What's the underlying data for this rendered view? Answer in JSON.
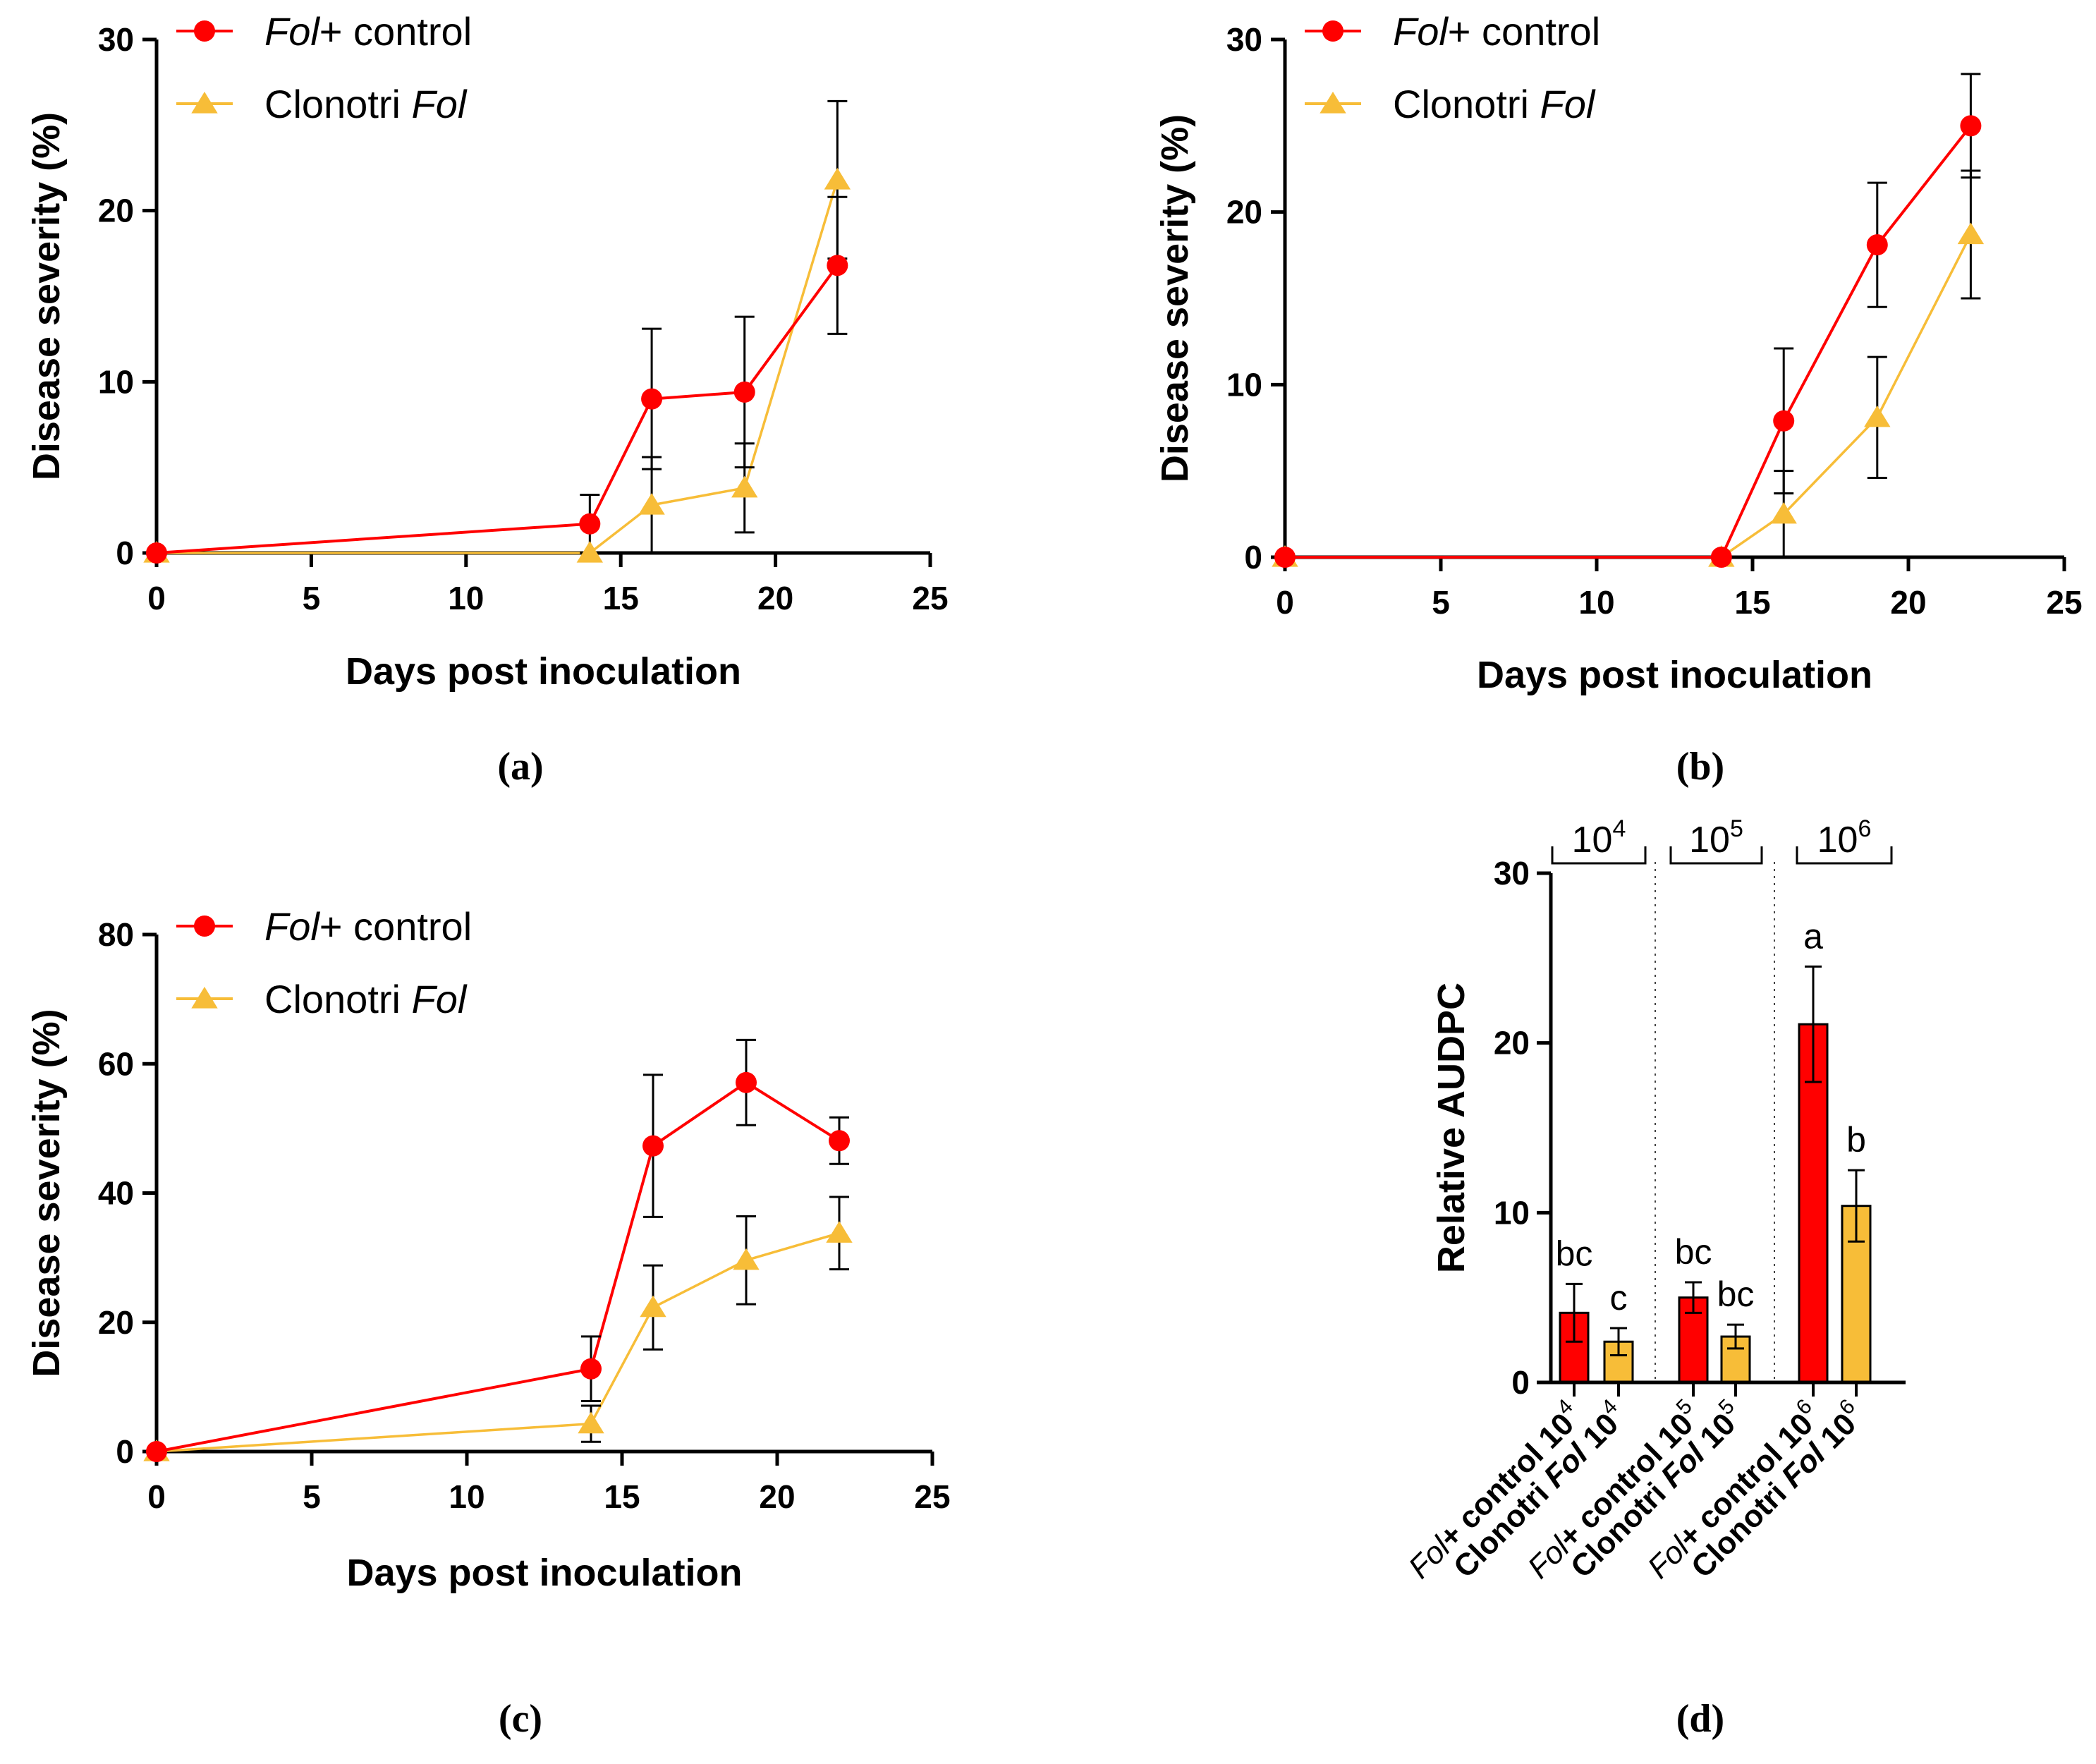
{
  "figure": {
    "panels": [
      "(a)",
      "(b)",
      "(c)",
      "(d)"
    ]
  },
  "colors": {
    "control": "#ff0000",
    "clonotri": "#f7bd38",
    "axis": "#000000"
  },
  "chart_data": [
    {
      "id": "a",
      "panel_label": "(a)",
      "type": "line",
      "xlabel": "Days post inoculation",
      "ylabel": "Disease severity (%)",
      "xlim": [
        0,
        25
      ],
      "ylim": [
        0,
        30
      ],
      "xticks": [
        0,
        5,
        10,
        15,
        20,
        25
      ],
      "yticks": [
        0,
        10,
        20,
        30
      ],
      "legend": [
        {
          "italic": "Fol",
          "rest": "+ control",
          "marker": "circle",
          "italic_first": true
        },
        {
          "italic": "Fol",
          "rest": "Clonotri ",
          "marker": "triangle",
          "italic_first": false
        }
      ],
      "series": [
        {
          "name": "Fol+ control",
          "marker": "circle",
          "color": "#ff0000",
          "x": [
            0,
            14,
            16,
            19,
            22
          ],
          "y": [
            0,
            1.7,
            9.0,
            9.4,
            16.8
          ],
          "err": [
            0,
            1.7,
            4.1,
            4.4,
            4.0
          ]
        },
        {
          "name": "Clonotri Fol",
          "marker": "triangle",
          "color": "#f7bd38",
          "x": [
            0,
            14,
            16,
            19,
            22
          ],
          "y": [
            0,
            0,
            2.8,
            3.8,
            21.8
          ],
          "err": [
            0,
            0,
            2.8,
            2.6,
            4.6
          ]
        }
      ]
    },
    {
      "id": "b",
      "panel_label": "(b)",
      "type": "line",
      "xlabel": "Days post inoculation",
      "ylabel": "Disease severity (%)",
      "xlim": [
        0,
        25
      ],
      "ylim": [
        0,
        30
      ],
      "xticks": [
        0,
        5,
        10,
        15,
        20,
        25
      ],
      "yticks": [
        0,
        10,
        20,
        30
      ],
      "legend": [
        {
          "italic": "Fol",
          "rest": "+ control",
          "marker": "circle",
          "italic_first": true
        },
        {
          "italic": "Fol",
          "rest": "Clonotri ",
          "marker": "triangle",
          "italic_first": false
        }
      ],
      "series": [
        {
          "name": "Fol+ control",
          "marker": "circle",
          "color": "#ff0000",
          "x": [
            0,
            14,
            16,
            19,
            22
          ],
          "y": [
            0,
            0,
            7.9,
            18.1,
            25.0
          ],
          "err": [
            0,
            0,
            4.2,
            3.6,
            3.0
          ]
        },
        {
          "name": "Clonotri Fol",
          "marker": "triangle",
          "color": "#f7bd38",
          "x": [
            0,
            14,
            16,
            19,
            22
          ],
          "y": [
            0,
            0,
            2.5,
            8.1,
            18.7
          ],
          "err": [
            0,
            0,
            2.5,
            3.5,
            3.7
          ]
        }
      ]
    },
    {
      "id": "c",
      "panel_label": "(c)",
      "type": "line",
      "xlabel": "Days post inoculation",
      "ylabel": "Disease severity (%)",
      "xlim": [
        0,
        25
      ],
      "ylim": [
        0,
        80
      ],
      "xticks": [
        0,
        5,
        10,
        15,
        20,
        25
      ],
      "yticks": [
        0,
        20,
        40,
        60,
        80
      ],
      "legend": [
        {
          "italic": "Fol",
          "rest": "+ control",
          "marker": "circle",
          "italic_first": true
        },
        {
          "italic": "Fol",
          "rest": "Clonotri ",
          "marker": "triangle",
          "italic_first": false
        }
      ],
      "series": [
        {
          "name": "Fol+ control",
          "marker": "circle",
          "color": "#ff0000",
          "x": [
            0,
            14,
            16,
            19,
            22
          ],
          "y": [
            0,
            12.8,
            47.3,
            57.1,
            48.1
          ],
          "err": [
            0,
            5.0,
            11.0,
            6.6,
            3.6
          ]
        },
        {
          "name": "Clonotri Fol",
          "marker": "triangle",
          "color": "#f7bd38",
          "x": [
            0,
            14,
            16,
            19,
            22
          ],
          "y": [
            0,
            4.3,
            22.3,
            29.6,
            33.8
          ],
          "err": [
            0,
            2.8,
            6.5,
            6.8,
            5.6
          ]
        }
      ]
    },
    {
      "id": "d",
      "panel_label": "(d)",
      "type": "bar",
      "ylabel": "Relative AUDPC",
      "ylim": [
        0,
        30
      ],
      "yticks": [
        0,
        10,
        20,
        30
      ],
      "groups": [
        {
          "base": "10",
          "exp": "4"
        },
        {
          "base": "10",
          "exp": "5"
        },
        {
          "base": "10",
          "exp": "6"
        }
      ],
      "categories": [
        {
          "kind": "control",
          "pre": "Fol",
          "mid": "+ control ",
          "base": "10",
          "exp": "4"
        },
        {
          "kind": "clonotri",
          "pre": "Clonotri ",
          "mid": "Fol",
          "base": " 10",
          "exp": "4"
        },
        {
          "kind": "control",
          "pre": "Fol",
          "mid": "+ control ",
          "base": "10",
          "exp": "5"
        },
        {
          "kind": "clonotri",
          "pre": "Clonotri ",
          "mid": "Fol",
          "base": " 10",
          "exp": "5"
        },
        {
          "kind": "control",
          "pre": "Fol",
          "mid": "+ control ",
          "base": "10",
          "exp": "6"
        },
        {
          "kind": "clonotri",
          "pre": "Clonotri ",
          "mid": "Fol",
          "base": " 10",
          "exp": "6"
        }
      ],
      "values": [
        4.1,
        2.4,
        5.0,
        2.7,
        21.1,
        10.4
      ],
      "errors": [
        1.7,
        0.8,
        0.9,
        0.7,
        3.4,
        2.1
      ],
      "significance": [
        "bc",
        "c",
        "bc",
        "bc",
        "a",
        "b"
      ]
    }
  ]
}
